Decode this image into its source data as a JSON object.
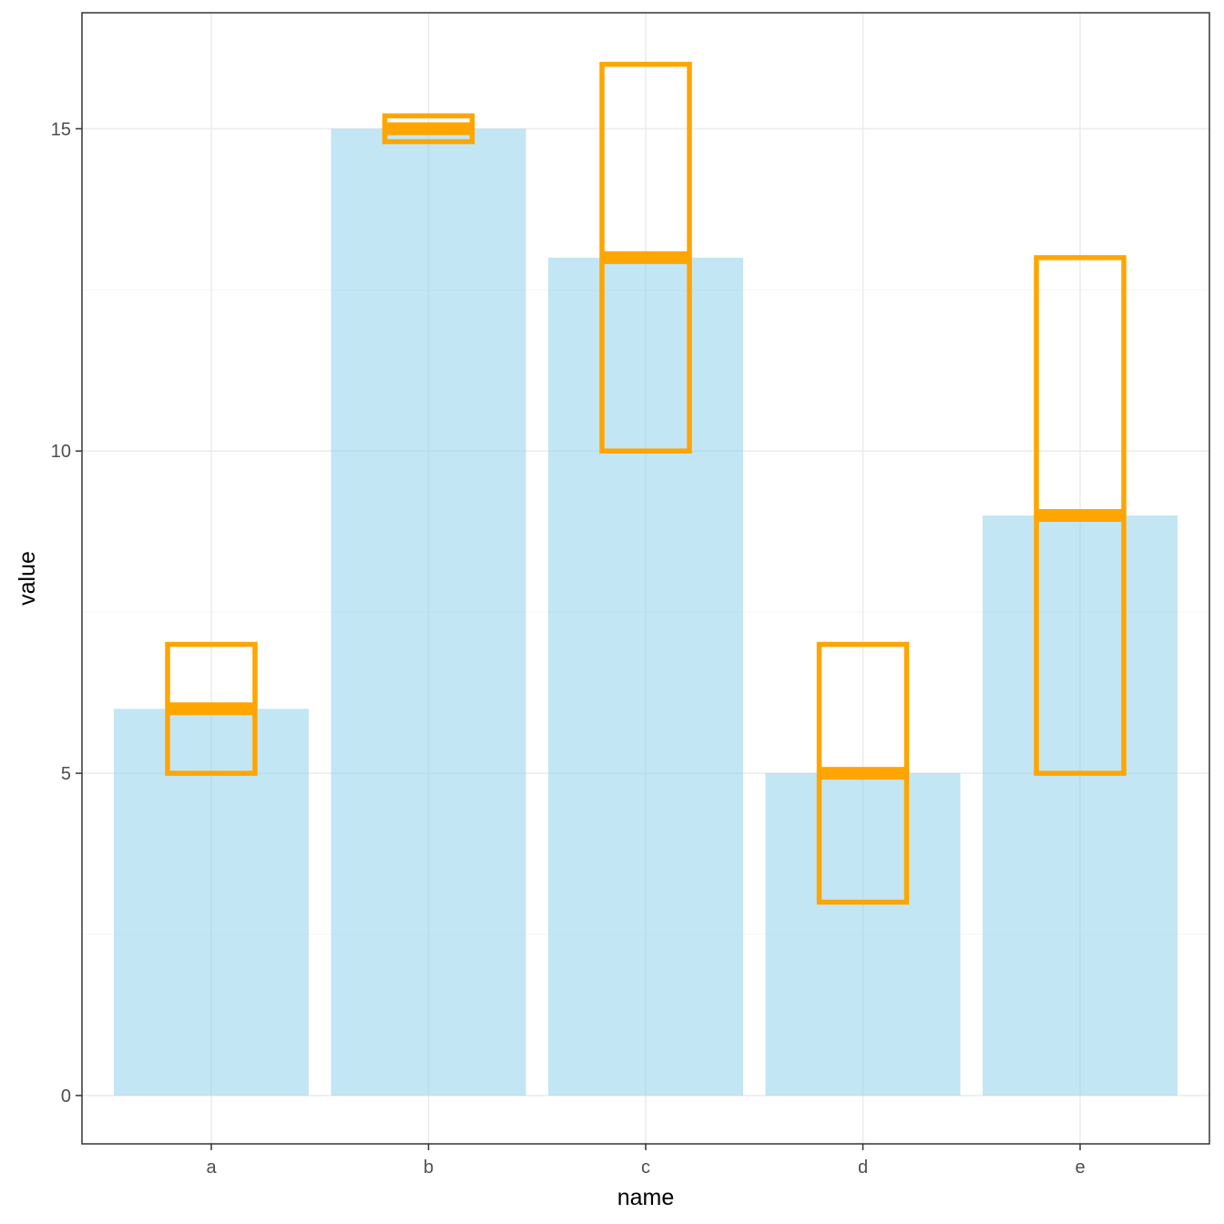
{
  "chart_data": {
    "type": "bar",
    "xlabel": "name",
    "ylabel": "value",
    "categories": [
      "a",
      "b",
      "c",
      "d",
      "e"
    ],
    "values": [
      6,
      15,
      13,
      5,
      9
    ],
    "ranges": [
      {
        "category": "a",
        "low": 5,
        "mid": 6,
        "high": 7
      },
      {
        "category": "b",
        "low": 14.8,
        "mid": 15,
        "high": 15.2
      },
      {
        "category": "c",
        "low": 10,
        "mid": 13,
        "high": 16
      },
      {
        "category": "d",
        "low": 3,
        "mid": 5,
        "high": 7
      },
      {
        "category": "e",
        "low": 5,
        "mid": 9,
        "high": 13
      }
    ],
    "ylim": [
      -0.75,
      16.8
    ],
    "yticks": [
      0,
      5,
      10,
      15
    ],
    "grid": true,
    "legend": "none",
    "colors": {
      "bar_fill": "#87ceeb",
      "bar_opacity": 0.5,
      "range_stroke": "#ffa500",
      "panel_border": "#333333",
      "grid_major": "#ebebeb",
      "grid_minor": "#f4f4f4"
    }
  }
}
